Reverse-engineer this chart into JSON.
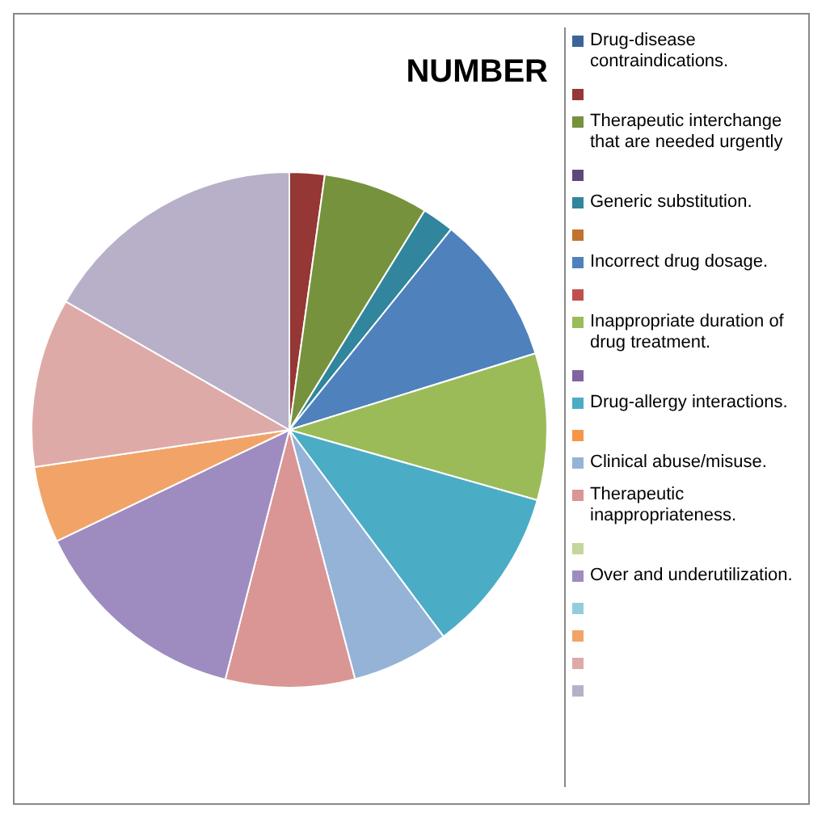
{
  "chart_data": {
    "type": "pie",
    "title": "NUMBER",
    "categories": [
      "Drug-disease contraindications.",
      null,
      "Therapeutic interchange that are needed urgently",
      null,
      "Generic substitution.",
      null,
      "Incorrect drug dosage.",
      null,
      "Inappropriate duration of drug treatment.",
      null,
      "Drug-allergy interactions.",
      null,
      "Clinical abuse/misuse.",
      "Therapeutic inappropriateness.",
      null,
      "Over and underutilization.",
      null,
      null,
      null,
      null
    ],
    "values": [
      0,
      2.2,
      6.6,
      0,
      2.0,
      0,
      9.4,
      0,
      9.2,
      0,
      10.4,
      0,
      6.1,
      8.1,
      0,
      13.9,
      0,
      4.8,
      10.6,
      16.7
    ],
    "colors": [
      "#3c6496",
      "#953735",
      "#76923c",
      "#5f497a",
      "#31859c",
      "#c0722e",
      "#4f81bd",
      "#c0504d",
      "#9bbb59",
      "#8064a2",
      "#4bacc6",
      "#f79646",
      "#95b3d7",
      "#d99694",
      "#c3d69b",
      "#9e8cc0",
      "#93cddd",
      "#f2a468",
      "#deaaa8",
      "#b8b0c8"
    ],
    "legend": "right"
  }
}
